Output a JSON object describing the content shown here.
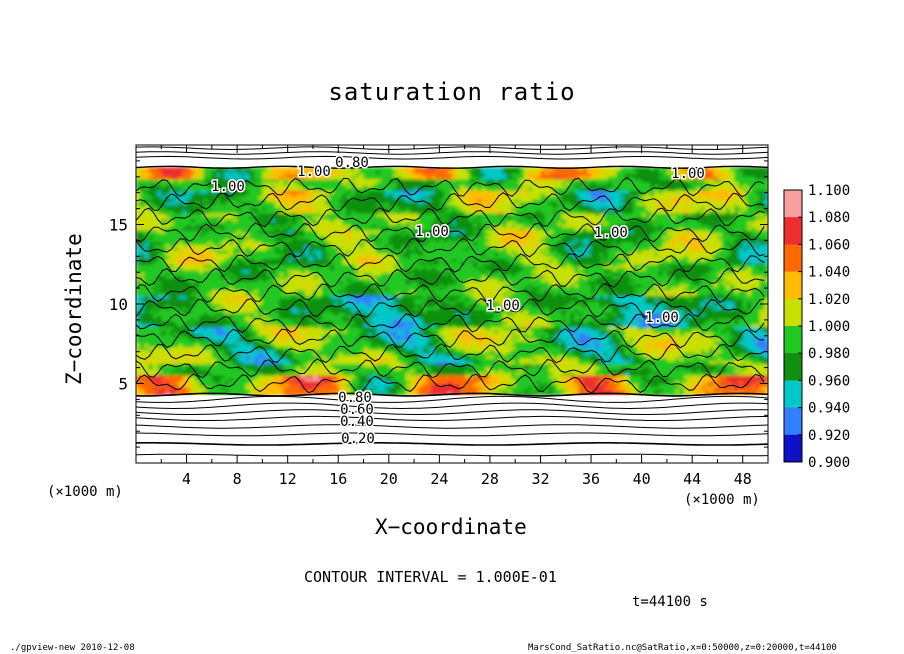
{
  "title": "saturation ratio",
  "xlabel": "X−coordinate",
  "ylabel": "Z−coordinate",
  "x_unit_left": "(×1000 m)",
  "x_unit_right": "(×1000 m)",
  "contour_interval": "CONTOUR INTERVAL = 1.000E-01",
  "time_label": "t=44100 s",
  "footer_left": "./gpview-new  2010-12-08",
  "footer_right": "MarsCond_SatRatio.nc@SatRatio,x=0:50000,z=0:20000,t=44100",
  "chart_data": {
    "type": "heatmap",
    "title": "saturation ratio",
    "xlabel": "X−coordinate",
    "ylabel": "Z−coordinate",
    "xlim": [
      0,
      50
    ],
    "ylim": [
      0,
      20
    ],
    "x_ticks": [
      "4",
      "8",
      "12",
      "16",
      "20",
      "24",
      "28",
      "32",
      "36",
      "40",
      "44",
      "48"
    ],
    "y_ticks": [
      "5",
      "10",
      "15"
    ],
    "colorbar": {
      "levels": [
        "1.100",
        "1.080",
        "1.060",
        "1.040",
        "1.020",
        "1.000",
        "0.980",
        "0.960",
        "0.940",
        "0.920",
        "0.900"
      ],
      "colors": [
        "#f8a0a0",
        "#ee2e2e",
        "#ff6a00",
        "#ffbb00",
        "#c8e000",
        "#22c822",
        "#109010",
        "#00c8c8",
        "#3280ff",
        "#1010c8",
        "#6020a8"
      ]
    },
    "contour_labels": [
      "0.80",
      "1.00",
      "1.00",
      "1.00",
      "1.00",
      "1.00",
      "1.00",
      "1.00",
      "0.80",
      "0.60",
      "0.40",
      "0.20"
    ],
    "low_level_contours_km": [
      0.5,
      1.2,
      1.8,
      2.3,
      2.8,
      3.2,
      3.6,
      4.0
    ],
    "top_contours_km": [
      19.2,
      19.5,
      19.8
    ],
    "moist_layer_km": [
      4.3,
      18.6
    ]
  }
}
